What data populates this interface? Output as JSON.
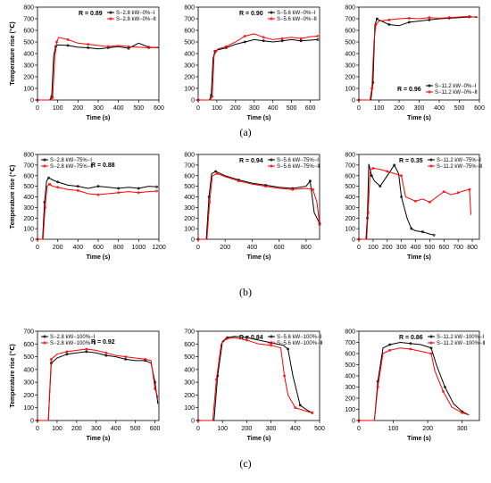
{
  "captions": [
    "(a)",
    "(b)",
    "(c)"
  ],
  "colors": {
    "series1": "#000000",
    "series2": "#ff0000"
  },
  "chart_data": [
    {
      "type": "line",
      "xlabel": "Time (s)",
      "ylabel": "Temperature rise (℃)",
      "xlim": [
        0,
        600
      ],
      "ylim": [
        0,
        800
      ],
      "xticks": [
        0,
        100,
        200,
        300,
        400,
        500,
        600
      ],
      "yticks": [
        0,
        100,
        200,
        300,
        400,
        500,
        600,
        700,
        800
      ],
      "r_label": "R = 0.89",
      "legend_position": "top-right",
      "series": [
        {
          "name": "S−2.8 kW−0%−Ⅰ",
          "x": [
            0,
            60,
            70,
            80,
            90,
            100,
            150,
            200,
            250,
            300,
            350,
            400,
            450,
            500,
            550,
            600
          ],
          "y": [
            0,
            0,
            30,
            380,
            460,
            475,
            470,
            455,
            450,
            440,
            450,
            460,
            445,
            490,
            455,
            450
          ]
        },
        {
          "name": "S−2.8 kW−0%−Ⅱ",
          "x": [
            0,
            65,
            75,
            85,
            95,
            105,
            150,
            200,
            250,
            300,
            350,
            400,
            450,
            500,
            550,
            600
          ],
          "y": [
            0,
            0,
            20,
            360,
            500,
            540,
            520,
            490,
            480,
            470,
            460,
            470,
            460,
            455,
            450,
            455
          ]
        }
      ]
    },
    {
      "type": "line",
      "xlabel": "Time (s)",
      "ylabel": "",
      "xlim": [
        0,
        650
      ],
      "ylim": [
        0,
        800
      ],
      "xticks": [
        0,
        100,
        200,
        300,
        400,
        500,
        600
      ],
      "yticks": [
        0,
        100,
        200,
        300,
        400,
        500,
        600,
        700,
        800
      ],
      "r_label": "R = 0.90",
      "legend_position": "top-right",
      "series": [
        {
          "name": "S−5.6 kW−0%−Ⅰ",
          "x": [
            0,
            60,
            70,
            80,
            90,
            100,
            150,
            200,
            250,
            300,
            350,
            400,
            450,
            500,
            550,
            600,
            640
          ],
          "y": [
            0,
            0,
            40,
            360,
            420,
            430,
            450,
            480,
            500,
            520,
            510,
            500,
            510,
            520,
            510,
            515,
            520
          ]
        },
        {
          "name": "S−5.6 kW−0%−Ⅱ",
          "x": [
            0,
            65,
            75,
            85,
            95,
            105,
            150,
            200,
            250,
            300,
            350,
            400,
            450,
            500,
            550,
            600,
            640
          ],
          "y": [
            0,
            0,
            30,
            380,
            420,
            440,
            460,
            500,
            550,
            570,
            540,
            520,
            530,
            540,
            530,
            545,
            550
          ]
        }
      ]
    },
    {
      "type": "line",
      "xlabel": "Time (s)",
      "ylabel": "",
      "xlim": [
        0,
        600
      ],
      "ylim": [
        0,
        800
      ],
      "xticks": [
        0,
        100,
        200,
        300,
        400,
        500,
        600
      ],
      "yticks": [
        0,
        100,
        200,
        300,
        400,
        500,
        600,
        700,
        800
      ],
      "r_label": "R = 0.96",
      "legend_position": "bottom-right",
      "series": [
        {
          "name": "S−11.2 kW−0%−Ⅰ",
          "x": [
            0,
            60,
            70,
            80,
            90,
            100,
            150,
            200,
            250,
            300,
            350,
            400,
            450,
            500,
            550,
            590
          ],
          "y": [
            0,
            0,
            150,
            650,
            700,
            690,
            650,
            640,
            670,
            680,
            690,
            700,
            705,
            710,
            715,
            715
          ]
        },
        {
          "name": "S−11.2 kW−0%−Ⅱ",
          "x": [
            0,
            55,
            65,
            75,
            85,
            100,
            150,
            200,
            250,
            300,
            350,
            400,
            450,
            500,
            550,
            590
          ],
          "y": [
            0,
            0,
            100,
            500,
            650,
            680,
            690,
            700,
            705,
            700,
            710,
            705,
            710,
            715,
            720,
            710
          ]
        }
      ]
    },
    {
      "type": "line",
      "xlabel": "Time (s)",
      "ylabel": "Temperature rise (℃)",
      "xlim": [
        0,
        1200
      ],
      "ylim": [
        0,
        800
      ],
      "xticks": [
        0,
        200,
        400,
        600,
        800,
        1000,
        1200
      ],
      "yticks": [
        0,
        100,
        200,
        300,
        400,
        500,
        600,
        700,
        800
      ],
      "r_label": "R = 0.88",
      "legend_position": "top-left",
      "series": [
        {
          "name": "S−2.8 kW−75%−Ⅰ",
          "x": [
            0,
            50,
            70,
            90,
            110,
            150,
            200,
            300,
            400,
            500,
            600,
            700,
            800,
            900,
            1000,
            1100,
            1180
          ],
          "y": [
            0,
            0,
            350,
            550,
            580,
            560,
            540,
            510,
            500,
            480,
            500,
            490,
            480,
            490,
            480,
            500,
            495
          ]
        },
        {
          "name": "S−2.8 kW−75%−Ⅱ",
          "x": [
            0,
            55,
            75,
            95,
            120,
            150,
            200,
            300,
            400,
            500,
            600,
            700,
            800,
            900,
            1000,
            1100,
            1180
          ],
          "y": [
            0,
            0,
            300,
            500,
            520,
            500,
            490,
            470,
            460,
            430,
            420,
            430,
            440,
            450,
            440,
            450,
            455
          ]
        }
      ]
    },
    {
      "type": "line",
      "xlabel": "Time (s)",
      "ylabel": "",
      "xlim": [
        0,
        900
      ],
      "ylim": [
        0,
        800
      ],
      "xticks": [
        0,
        200,
        400,
        600,
        800
      ],
      "yticks": [
        0,
        100,
        200,
        300,
        400,
        500,
        600,
        700,
        800
      ],
      "r_label": "R = 0.94",
      "legend_position": "top-right",
      "series": [
        {
          "name": "S−5.6 kW−75%−Ⅰ",
          "x": [
            0,
            60,
            80,
            100,
            130,
            200,
            300,
            400,
            500,
            600,
            700,
            800,
            830,
            860,
            900
          ],
          "y": [
            0,
            0,
            400,
            620,
            640,
            600,
            560,
            530,
            510,
            490,
            480,
            500,
            550,
            250,
            150
          ]
        },
        {
          "name": "S−5.6 kW−75%−Ⅱ",
          "x": [
            0,
            65,
            85,
            105,
            140,
            200,
            300,
            400,
            500,
            600,
            700,
            800,
            850,
            880,
            900
          ],
          "y": [
            0,
            0,
            350,
            600,
            620,
            590,
            550,
            520,
            500,
            480,
            470,
            480,
            470,
            350,
            140
          ]
        }
      ]
    },
    {
      "type": "line",
      "xlabel": "Time (s)",
      "ylabel": "",
      "xlim": [
        0,
        850
      ],
      "ylim": [
        0,
        800
      ],
      "xticks": [
        0,
        100,
        200,
        300,
        400,
        500,
        600,
        700,
        800
      ],
      "yticks": [
        0,
        100,
        200,
        300,
        400,
        500,
        600,
        700,
        800
      ],
      "r_label": "R = 0.35",
      "legend_position": "top-right",
      "series": [
        {
          "name": "S−11.2 kW−75%−Ⅰ",
          "x": [
            0,
            50,
            60,
            70,
            90,
            110,
            150,
            200,
            250,
            280,
            300,
            340,
            370,
            400,
            450,
            500,
            530
          ],
          "y": [
            0,
            0,
            200,
            710,
            600,
            550,
            500,
            600,
            700,
            620,
            400,
            200,
            100,
            80,
            70,
            50,
            40
          ]
        },
        {
          "name": "S−11.2 kW−75%−Ⅱ",
          "x": [
            0,
            55,
            65,
            80,
            100,
            150,
            200,
            250,
            300,
            330,
            400,
            450,
            500,
            550,
            600,
            650,
            700,
            750,
            780,
            790
          ],
          "y": [
            0,
            0,
            250,
            650,
            670,
            660,
            640,
            620,
            600,
            400,
            360,
            380,
            350,
            400,
            450,
            420,
            440,
            460,
            470,
            230
          ]
        }
      ]
    },
    {
      "type": "line",
      "xlabel": "Time (s)",
      "ylabel": "Temperature rise (℃)",
      "xlim": [
        0,
        620
      ],
      "ylim": [
        0,
        700
      ],
      "xticks": [
        0,
        100,
        200,
        300,
        400,
        500,
        600
      ],
      "yticks": [
        0,
        100,
        200,
        300,
        400,
        500,
        600,
        700
      ],
      "r_label": "R = 0.92",
      "legend_position": "top-left",
      "series": [
        {
          "name": "S−2.8 kW−100%−Ⅰ",
          "x": [
            0,
            55,
            70,
            100,
            150,
            200,
            250,
            300,
            350,
            400,
            450,
            500,
            550,
            580,
            600,
            615
          ],
          "y": [
            0,
            0,
            450,
            490,
            520,
            530,
            540,
            530,
            510,
            500,
            480,
            470,
            470,
            450,
            300,
            130
          ]
        },
        {
          "name": "S−2.8 kW−100%−Ⅱ",
          "x": [
            0,
            55,
            70,
            100,
            150,
            200,
            250,
            300,
            350,
            400,
            450,
            500,
            550,
            580,
            600,
            615
          ],
          "y": [
            0,
            0,
            480,
            520,
            540,
            550,
            560,
            550,
            530,
            510,
            500,
            490,
            480,
            470,
            250,
            180
          ]
        }
      ]
    },
    {
      "type": "line",
      "xlabel": "Time (s)",
      "ylabel": "",
      "xlim": [
        0,
        500
      ],
      "ylim": [
        0,
        700
      ],
      "xticks": [
        0,
        100,
        200,
        300,
        400,
        500
      ],
      "yticks": [
        0,
        100,
        200,
        300,
        400,
        500,
        600,
        700
      ],
      "r_label": "R = 0.84",
      "legend_position": "top-right",
      "series": [
        {
          "name": "S−5.6 kW−100%−Ⅰ",
          "x": [
            0,
            65,
            80,
            100,
            120,
            150,
            200,
            250,
            300,
            350,
            370,
            390,
            420,
            450,
            470
          ],
          "y": [
            0,
            0,
            350,
            620,
            650,
            660,
            650,
            630,
            610,
            590,
            560,
            350,
            120,
            80,
            60
          ]
        },
        {
          "name": "S−5.6 kW−100%−Ⅱ",
          "x": [
            0,
            60,
            75,
            95,
            115,
            150,
            200,
            250,
            300,
            340,
            355,
            370,
            400,
            450,
            470
          ],
          "y": [
            0,
            0,
            320,
            600,
            640,
            650,
            630,
            600,
            590,
            570,
            350,
            200,
            100,
            70,
            60
          ]
        }
      ]
    },
    {
      "type": "line",
      "xlabel": "Time (s)",
      "ylabel": "",
      "xlim": [
        0,
        350
      ],
      "ylim": [
        0,
        800
      ],
      "xticks": [
        0,
        100,
        200,
        300
      ],
      "yticks": [
        0,
        100,
        200,
        300,
        400,
        500,
        600,
        700,
        800
      ],
      "r_label": "R = 0.86",
      "legend_position": "top-right",
      "series": [
        {
          "name": "S−11.2 kW−100%−Ⅰ",
          "x": [
            0,
            45,
            55,
            70,
            90,
            120,
            150,
            180,
            210,
            225,
            250,
            275,
            300,
            320
          ],
          "y": [
            0,
            0,
            350,
            650,
            680,
            700,
            690,
            680,
            650,
            500,
            300,
            150,
            80,
            50
          ]
        },
        {
          "name": "S−11.2 kW−100%−Ⅱ",
          "x": [
            0,
            45,
            55,
            70,
            90,
            120,
            150,
            180,
            210,
            220,
            245,
            270,
            300,
            320
          ],
          "y": [
            0,
            0,
            300,
            600,
            630,
            650,
            640,
            620,
            600,
            450,
            260,
            120,
            70,
            50
          ]
        }
      ]
    }
  ]
}
